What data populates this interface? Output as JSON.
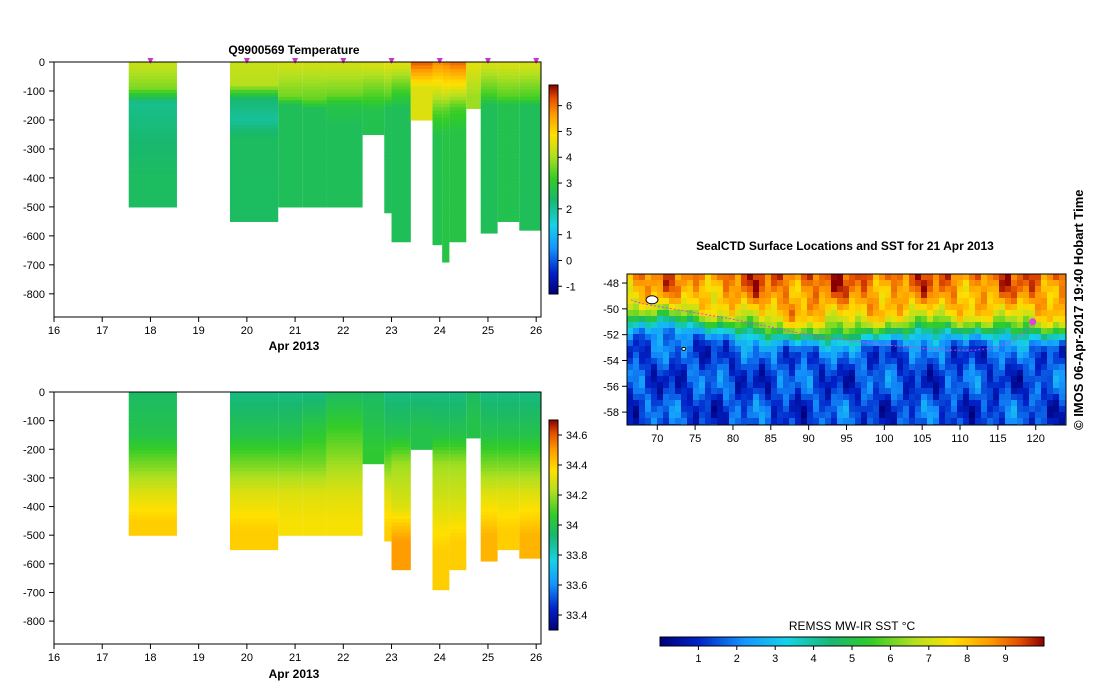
{
  "chart_data": [
    {
      "type": "heatmap",
      "title": "Q9900569  Temperature",
      "xlabel": "Apr 2013",
      "ylabel": "",
      "xlim": [
        16,
        26.1
      ],
      "ylim": [
        -880,
        0
      ],
      "xticks": [
        "16",
        "17",
        "18",
        "19",
        "20",
        "21",
        "22",
        "23",
        "24",
        "25",
        "26"
      ],
      "yticks": [
        "0",
        "-100",
        "-200",
        "-300",
        "-400",
        "-500",
        "-600",
        "-700",
        "-800"
      ],
      "profile_marker_days": [
        18,
        20,
        21,
        22,
        23,
        24,
        25,
        26
      ],
      "marker_color": "#cc33cc",
      "colorbar": {
        "min": -1.3,
        "max": 6.8,
        "ticks": [
          "-1",
          "0",
          "1",
          "2",
          "3",
          "4",
          "5",
          "6"
        ]
      },
      "profiles": [
        {
          "start": 17.55,
          "end": 18.55,
          "depth": 500,
          "layers": [
            [
              0,
              4.3
            ],
            [
              90,
              3.7
            ],
            [
              140,
              2.1
            ],
            [
              250,
              2.3
            ],
            [
              400,
              2.5
            ]
          ]
        },
        {
          "start": 19.65,
          "end": 20.65,
          "depth": 550,
          "layers": [
            [
              0,
              4.3
            ],
            [
              80,
              4.1
            ],
            [
              130,
              2.3
            ],
            [
              200,
              2.0
            ],
            [
              260,
              2.5
            ]
          ]
        },
        {
          "start": 20.65,
          "end": 21.15,
          "depth": 500,
          "layers": [
            [
              0,
              4.4
            ],
            [
              120,
              3.6
            ],
            [
              150,
              2.6
            ],
            [
              300,
              2.6
            ]
          ]
        },
        {
          "start": 21.15,
          "end": 21.65,
          "depth": 500,
          "layers": [
            [
              0,
              4.4
            ],
            [
              130,
              3.5
            ],
            [
              160,
              2.6
            ],
            [
              350,
              2.6
            ]
          ]
        },
        {
          "start": 21.65,
          "end": 22.4,
          "depth": 500,
          "layers": [
            [
              0,
              4.4
            ],
            [
              110,
              3.6
            ],
            [
              150,
              2.8
            ],
            [
              220,
              2.6
            ]
          ]
        },
        {
          "start": 22.4,
          "end": 22.85,
          "depth": 250,
          "layers": [
            [
              0,
              4.5
            ],
            [
              130,
              3.2
            ],
            [
              170,
              2.7
            ]
          ]
        },
        {
          "start": 22.85,
          "end": 23.0,
          "depth": 520,
          "layers": [
            [
              0,
              4.6
            ],
            [
              120,
              3.4
            ],
            [
              160,
              2.6
            ]
          ]
        },
        {
          "start": 23.0,
          "end": 23.4,
          "depth": 620,
          "layers": [
            [
              0,
              4.6
            ],
            [
              120,
              3.0
            ],
            [
              160,
              2.6
            ]
          ]
        },
        {
          "start": 23.4,
          "end": 23.85,
          "depth": 200,
          "layers": [
            [
              0,
              6.2
            ],
            [
              90,
              4.5
            ]
          ]
        },
        {
          "start": 23.85,
          "end": 24.05,
          "depth": 630,
          "layers": [
            [
              0,
              5.8
            ],
            [
              100,
              4.4
            ],
            [
              180,
              3.3
            ],
            [
              260,
              2.7
            ]
          ]
        },
        {
          "start": 24.05,
          "end": 24.2,
          "depth": 690,
          "layers": [
            [
              0,
              5.9
            ],
            [
              100,
              4.5
            ],
            [
              170,
              3.4
            ],
            [
              250,
              2.8
            ]
          ]
        },
        {
          "start": 24.2,
          "end": 24.55,
          "depth": 620,
          "layers": [
            [
              0,
              6.1
            ],
            [
              90,
              4.6
            ],
            [
              160,
              3.3
            ],
            [
              240,
              2.8
            ]
          ]
        },
        {
          "start": 24.55,
          "end": 24.85,
          "depth": 160,
          "layers": [
            [
              0,
              4.6
            ],
            [
              120,
              3.9
            ]
          ]
        },
        {
          "start": 24.85,
          "end": 25.2,
          "depth": 590,
          "layers": [
            [
              0,
              4.5
            ],
            [
              110,
              3.3
            ],
            [
              150,
              2.6
            ]
          ]
        },
        {
          "start": 25.2,
          "end": 25.65,
          "depth": 550,
          "layers": [
            [
              0,
              4.5
            ],
            [
              120,
              3.4
            ],
            [
              150,
              2.7
            ]
          ]
        },
        {
          "start": 25.65,
          "end": 26.1,
          "depth": 580,
          "layers": [
            [
              0,
              4.5
            ],
            [
              130,
              3.2
            ],
            [
              150,
              2.6
            ]
          ]
        }
      ]
    },
    {
      "type": "heatmap",
      "title": "",
      "xlabel": "Apr 2013",
      "ylabel": "",
      "xlim": [
        16,
        26.1
      ],
      "ylim": [
        -880,
        0
      ],
      "xticks": [
        "16",
        "17",
        "18",
        "19",
        "20",
        "21",
        "22",
        "23",
        "24",
        "25",
        "26"
      ],
      "yticks": [
        "0",
        "-100",
        "-200",
        "-300",
        "-400",
        "-500",
        "-600",
        "-700",
        "-800"
      ],
      "colorbar": {
        "min": 33.3,
        "max": 34.7,
        "ticks": [
          "33.4",
          "33.6",
          "33.8",
          "34",
          "34.2",
          "34.4",
          "34.6"
        ]
      },
      "profiles": [
        {
          "start": 17.55,
          "end": 18.55,
          "depth": 500,
          "layers": [
            [
              0,
              33.95
            ],
            [
              150,
              34.0
            ],
            [
              250,
              34.15
            ],
            [
              350,
              34.3
            ],
            [
              450,
              34.4
            ]
          ]
        },
        {
          "start": 19.65,
          "end": 20.65,
          "depth": 550,
          "layers": [
            [
              0,
              33.9
            ],
            [
              150,
              34.0
            ],
            [
              250,
              34.15
            ],
            [
              350,
              34.3
            ],
            [
              480,
              34.4
            ]
          ]
        },
        {
          "start": 20.65,
          "end": 21.15,
          "depth": 500,
          "layers": [
            [
              0,
              33.9
            ],
            [
              150,
              34.0
            ],
            [
              250,
              34.15
            ],
            [
              350,
              34.3
            ],
            [
              450,
              34.35
            ]
          ]
        },
        {
          "start": 21.15,
          "end": 21.65,
          "depth": 500,
          "layers": [
            [
              0,
              33.9
            ],
            [
              150,
              34.05
            ],
            [
              250,
              34.15
            ],
            [
              350,
              34.3
            ],
            [
              450,
              34.35
            ]
          ]
        },
        {
          "start": 21.65,
          "end": 22.4,
          "depth": 500,
          "layers": [
            [
              0,
              33.95
            ],
            [
              150,
              34.1
            ],
            [
              250,
              34.2
            ],
            [
              350,
              34.3
            ],
            [
              450,
              34.35
            ]
          ]
        },
        {
          "start": 22.4,
          "end": 22.85,
          "depth": 250,
          "layers": [
            [
              0,
              33.95
            ],
            [
              120,
              34.0
            ],
            [
              200,
              34.05
            ]
          ]
        },
        {
          "start": 22.85,
          "end": 23.0,
          "depth": 520,
          "layers": [
            [
              0,
              33.9
            ],
            [
              150,
              34.0
            ],
            [
              250,
              34.15
            ],
            [
              350,
              34.3
            ],
            [
              480,
              34.4
            ]
          ]
        },
        {
          "start": 23.0,
          "end": 23.4,
          "depth": 620,
          "layers": [
            [
              0,
              33.9
            ],
            [
              150,
              34.0
            ],
            [
              250,
              34.2
            ],
            [
              400,
              34.3
            ],
            [
              520,
              34.5
            ]
          ]
        },
        {
          "start": 23.4,
          "end": 23.85,
          "depth": 200,
          "layers": [
            [
              0,
              33.9
            ],
            [
              130,
              34.0
            ]
          ]
        },
        {
          "start": 23.85,
          "end": 24.2,
          "depth": 690,
          "layers": [
            [
              0,
              33.9
            ],
            [
              150,
              34.0
            ],
            [
              250,
              34.2
            ],
            [
              400,
              34.3
            ],
            [
              550,
              34.4
            ]
          ]
        },
        {
          "start": 24.2,
          "end": 24.55,
          "depth": 620,
          "layers": [
            [
              0,
              33.9
            ],
            [
              150,
              34.0
            ],
            [
              250,
              34.2
            ],
            [
              400,
              34.3
            ],
            [
              520,
              34.4
            ]
          ]
        },
        {
          "start": 24.55,
          "end": 24.85,
          "depth": 160,
          "layers": [
            [
              0,
              33.95
            ],
            [
              100,
              34.0
            ]
          ]
        },
        {
          "start": 24.85,
          "end": 25.2,
          "depth": 590,
          "layers": [
            [
              0,
              33.9
            ],
            [
              150,
              34.0
            ],
            [
              250,
              34.15
            ],
            [
              350,
              34.3
            ],
            [
              500,
              34.45
            ]
          ]
        },
        {
          "start": 25.2,
          "end": 25.65,
          "depth": 550,
          "layers": [
            [
              0,
              33.9
            ],
            [
              150,
              34.0
            ],
            [
              250,
              34.15
            ],
            [
              350,
              34.3
            ],
            [
              480,
              34.4
            ]
          ]
        },
        {
          "start": 25.65,
          "end": 26.1,
          "depth": 580,
          "layers": [
            [
              0,
              33.9
            ],
            [
              150,
              34.0
            ],
            [
              250,
              34.15
            ],
            [
              350,
              34.3
            ],
            [
              500,
              34.45
            ]
          ]
        }
      ]
    },
    {
      "type": "heatmap",
      "title": "SealCTD Surface Locations and SST for 21 Apr 2013",
      "xlabel": "",
      "ylabel": "",
      "xlim": [
        66,
        124
      ],
      "ylim": [
        -59,
        -47.3
      ],
      "xticks": [
        "70",
        "75",
        "80",
        "85",
        "90",
        "95",
        "100",
        "105",
        "110",
        "115",
        "120"
      ],
      "yticks": [
        "-48",
        "-50",
        "-52",
        "-54",
        "-56",
        "-58"
      ],
      "colorbar": {
        "label": "REMSS MW-IR SST °C",
        "min": 0,
        "max": 10,
        "ticks": [
          "1",
          "2",
          "3",
          "4",
          "5",
          "6",
          "7",
          "8",
          "9"
        ]
      },
      "sst_front_lat": [
        [
          66,
          -50.8
        ],
        [
          75,
          -51.0
        ],
        [
          80,
          -51.5
        ],
        [
          85,
          -52.0
        ],
        [
          90,
          -52.2
        ],
        [
          95,
          -52.1
        ],
        [
          100,
          -51.8
        ],
        [
          105,
          -51.6
        ],
        [
          110,
          -51.6
        ],
        [
          115,
          -51.7
        ],
        [
          120,
          -51.9
        ],
        [
          124,
          -52.0
        ]
      ],
      "seal_track": [
        [
          66.5,
          -49.3
        ],
        [
          68,
          -49.6
        ],
        [
          72,
          -50.0
        ],
        [
          76,
          -50.4
        ],
        [
          80,
          -50.8
        ],
        [
          84,
          -51.3
        ],
        [
          88,
          -51.8
        ],
        [
          92,
          -52.2
        ],
        [
          96,
          -52.5
        ],
        [
          100,
          -52.8
        ],
        [
          104,
          -53.0
        ],
        [
          108,
          -53.2
        ],
        [
          112,
          -53.2
        ],
        [
          115,
          -53.0
        ],
        [
          117,
          -52.5
        ],
        [
          118.5,
          -51.8
        ],
        [
          119.5,
          -51.2
        ],
        [
          120,
          -50.8
        ]
      ],
      "current_position": [
        119.6,
        -51.0
      ],
      "track_color": "#dd44dd"
    }
  ],
  "credit": "© IMOS 06-Apr-2017 19:40 Hobart Time"
}
